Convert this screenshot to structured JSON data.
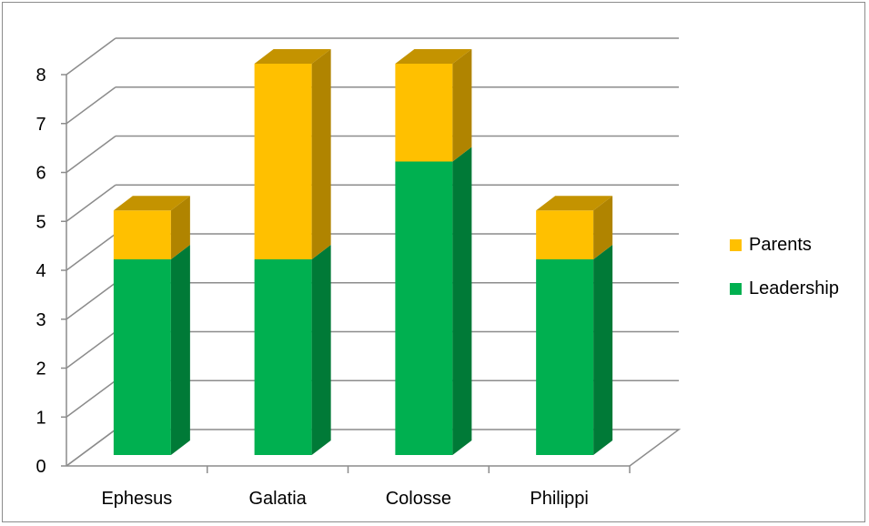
{
  "chart_data": {
    "type": "bar",
    "stacked": true,
    "three_d": true,
    "title": "",
    "xlabel": "",
    "ylabel": "",
    "categories": [
      "Ephesus",
      "Galatia",
      "Colosse",
      "Philippi"
    ],
    "series": [
      {
        "name": "Leadership",
        "values": [
          4,
          4,
          6,
          4
        ],
        "color": "#00b050",
        "side_color": "#007a37",
        "top_color": "#008a3c"
      },
      {
        "name": "Parents",
        "values": [
          1,
          4,
          2,
          1
        ],
        "color": "#ffc000",
        "side_color": "#b08400",
        "top_color": "#c49300"
      }
    ],
    "ylim": [
      0,
      8
    ],
    "yticks": [
      0,
      1,
      2,
      3,
      4,
      5,
      6,
      7,
      8
    ],
    "grid": true,
    "legend": "right"
  }
}
